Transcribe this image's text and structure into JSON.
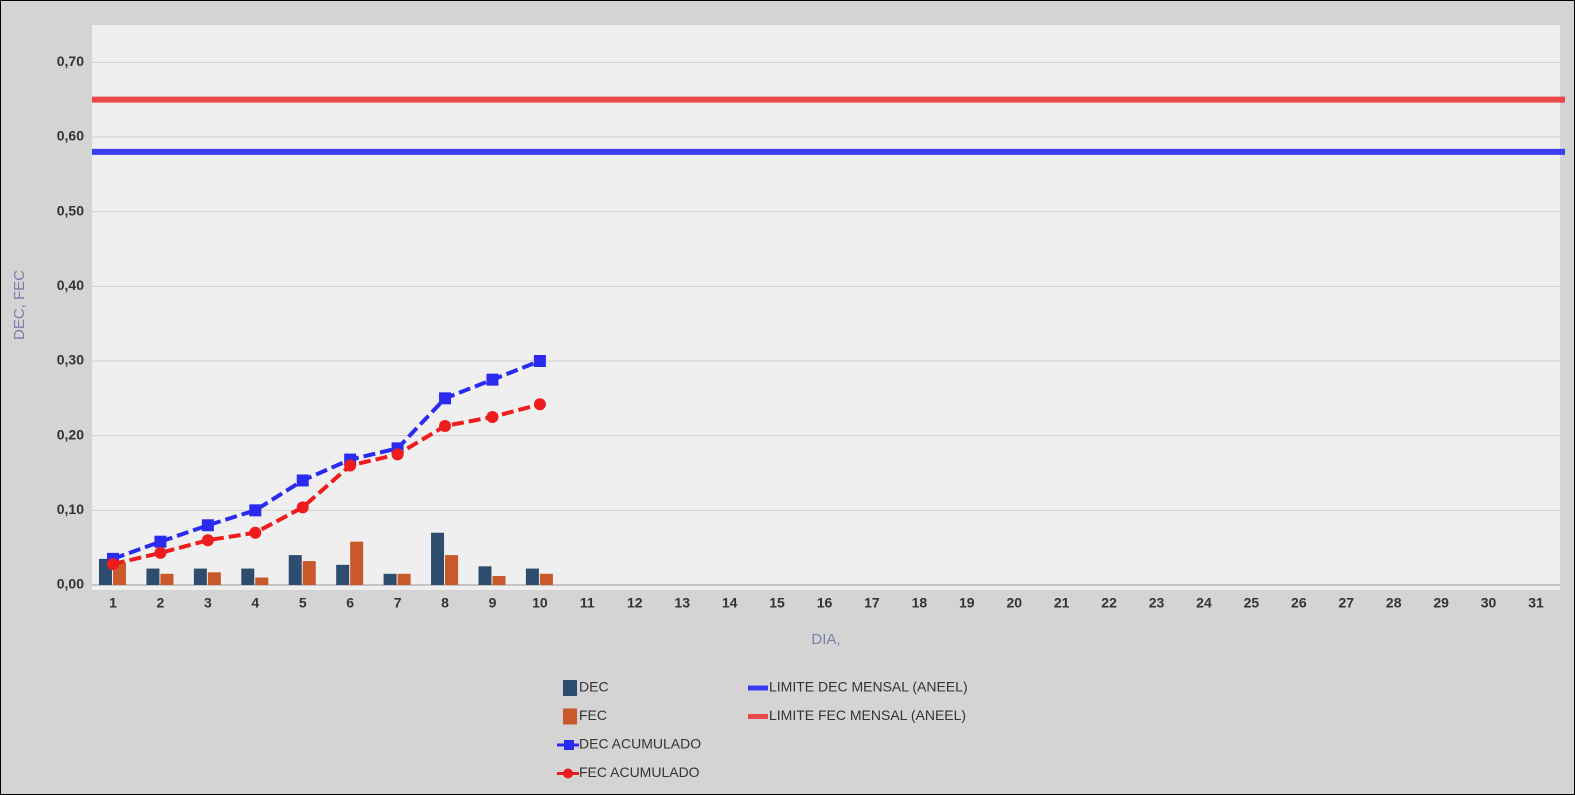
{
  "chart_data": {
    "type": "combo",
    "x_label": "DIA,",
    "y_label": "DEC, FEC",
    "categories": [
      "1",
      "2",
      "3",
      "4",
      "5",
      "6",
      "7",
      "8",
      "9",
      "10",
      "11",
      "12",
      "13",
      "14",
      "15",
      "16",
      "17",
      "18",
      "19",
      "20",
      "21",
      "22",
      "23",
      "24",
      "25",
      "26",
      "27",
      "28",
      "29",
      "30",
      "31"
    ],
    "ylim": [
      0,
      0.75
    ],
    "yticks": [
      {
        "value": 0,
        "label": "0,00"
      },
      {
        "value": 0.1,
        "label": "0,10"
      },
      {
        "value": 0.2,
        "label": "0,20"
      },
      {
        "value": 0.3,
        "label": "0,30"
      },
      {
        "value": 0.4,
        "label": "0,40"
      },
      {
        "value": 0.5,
        "label": "0,50"
      },
      {
        "value": 0.6,
        "label": "0,60"
      },
      {
        "value": 0.7,
        "label": "0,70"
      }
    ],
    "grid": true,
    "series": [
      {
        "name": "DEC",
        "type": "bar",
        "color": "#2d4c6e",
        "values": [
          0.035,
          0.022,
          0.022,
          0.022,
          0.04,
          0.027,
          0.015,
          0.07,
          0.025,
          0.022,
          null,
          null,
          null,
          null,
          null,
          null,
          null,
          null,
          null,
          null,
          null,
          null,
          null,
          null,
          null,
          null,
          null,
          null,
          null,
          null,
          null
        ]
      },
      {
        "name": "FEC",
        "type": "bar",
        "color": "#c9582b",
        "values": [
          0.03,
          0.015,
          0.017,
          0.01,
          0.032,
          0.058,
          0.015,
          0.04,
          0.012,
          0.015,
          null,
          null,
          null,
          null,
          null,
          null,
          null,
          null,
          null,
          null,
          null,
          null,
          null,
          null,
          null,
          null,
          null,
          null,
          null,
          null,
          null
        ]
      },
      {
        "name": "DEC ACUMULADO",
        "type": "line",
        "marker": "square",
        "color": "#2b2bf0",
        "values": [
          0.035,
          0.058,
          0.08,
          0.1,
          0.14,
          0.168,
          0.183,
          0.25,
          0.275,
          0.3,
          null,
          null,
          null,
          null,
          null,
          null,
          null,
          null,
          null,
          null,
          null,
          null,
          null,
          null,
          null,
          null,
          null,
          null,
          null,
          null,
          null
        ]
      },
      {
        "name": "FEC ACUMULADO",
        "type": "line",
        "marker": "circle",
        "color": "#ee1c1c",
        "values": [
          0.028,
          0.043,
          0.06,
          0.07,
          0.104,
          0.16,
          0.175,
          0.213,
          0.225,
          0.242,
          null,
          null,
          null,
          null,
          null,
          null,
          null,
          null,
          null,
          null,
          null,
          null,
          null,
          null,
          null,
          null,
          null,
          null,
          null,
          null,
          null
        ]
      },
      {
        "name": "LIMITE DEC MENSAL (ANEEL)",
        "type": "hline",
        "color": "#3b3bf0",
        "value": 0.58
      },
      {
        "name": "LIMITE FEC MENSAL (ANEEL)",
        "type": "hline",
        "color": "#e84848",
        "value": 0.65
      }
    ]
  }
}
